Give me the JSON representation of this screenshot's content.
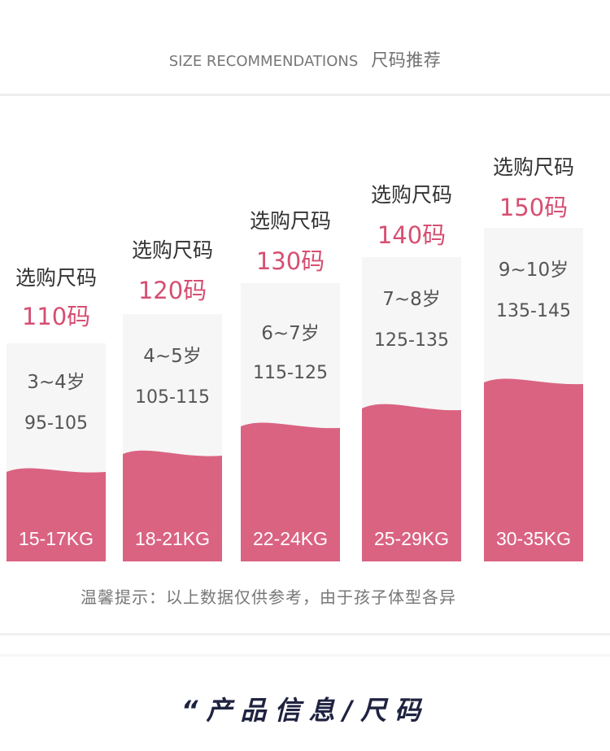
{
  "header": {
    "title_en": "SIZE RECOMMENDATIONS",
    "title_cn": "尺码推荐"
  },
  "recommend_label": "选购尺码",
  "columns": [
    {
      "size": "110码",
      "age": "3~4岁",
      "height": "95-105",
      "weight": "15-17KG"
    },
    {
      "size": "120码",
      "age": "4~5岁",
      "height": "105-115",
      "weight": "18-21KG"
    },
    {
      "size": "130码",
      "age": "6~7岁",
      "height": "115-125",
      "weight": "22-24KG"
    },
    {
      "size": "140码",
      "age": "7~8岁",
      "height": "125-135",
      "weight": "25-29KG"
    },
    {
      "size": "150码",
      "age": "9~10岁",
      "height": "135-145",
      "weight": "30-35KG"
    }
  ],
  "footnote": "温馨提示：以上数据仅供参考，由于孩子体型各异",
  "product_title": "“产品信息/尺码",
  "colors": {
    "accent": "#d64f72",
    "bar_fill": "#da6382",
    "box_bg": "#f6f6f6"
  }
}
